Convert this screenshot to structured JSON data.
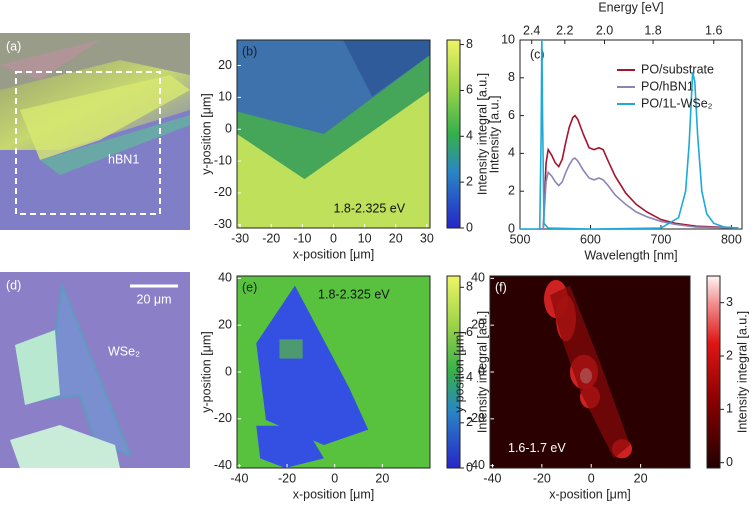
{
  "photos": [
    {
      "panel_label": "(a)",
      "labels": [
        "hBN1"
      ]
    },
    {
      "panel_label": "(d)",
      "labels": [
        "20 μm",
        "WSe₂"
      ]
    }
  ],
  "chart_data": [
    {
      "type": "heatmap",
      "panel_label": "(b)",
      "annotation": "1.8-2.325 eV",
      "colormap": "viridis",
      "x_label": "x-position [μm]",
      "y_label": "y-position [μm]",
      "colorbar_label": "Intensity integral [a.u.]",
      "xlim": [
        -31,
        31
      ],
      "xticks": [
        -30,
        -20,
        -10,
        0,
        10,
        20,
        30
      ],
      "ylim": [
        -31,
        28
      ],
      "yticks": [
        -30,
        -20,
        -10,
        0,
        10,
        20
      ],
      "clim": [
        0,
        8.2
      ],
      "cticks": [
        0,
        2,
        4,
        6,
        8
      ]
    },
    {
      "type": "line",
      "panel_label": "(c)",
      "x_label": "Wavelength [nm]",
      "y_label": "Intensity [a.u.]",
      "x2_label": "Energy [eV]",
      "legend": "upper right",
      "xlim": [
        500,
        815
      ],
      "xticks": [
        500,
        600,
        700,
        800
      ],
      "ylim": [
        0,
        10
      ],
      "yticks": [
        0,
        2,
        4,
        6,
        8,
        10
      ],
      "x2ticks": [
        2.4,
        2.2,
        {
          "value": 2,
          "label": "2.0"
        },
        1.8,
        1.6
      ],
      "series": [
        {
          "name": "PO/substrate",
          "color": "#a3152f",
          "x": [
            525,
            533,
            537,
            540,
            545,
            550,
            555,
            560,
            565,
            570,
            575,
            578,
            582,
            590,
            598,
            605,
            612,
            618,
            625,
            635,
            650,
            665,
            680,
            700,
            720,
            750,
            780,
            810
          ],
          "values": [
            0,
            0,
            3.5,
            4.2,
            3.9,
            3.5,
            3.3,
            3.7,
            4.6,
            5.4,
            5.9,
            6.0,
            5.8,
            5.0,
            4.3,
            4.2,
            4.3,
            4.2,
            3.6,
            2.8,
            1.9,
            1.3,
            0.9,
            0.5,
            0.3,
            0.15,
            0.1,
            0.05
          ]
        },
        {
          "name": "PO/hBN1",
          "color": "#8c84b4",
          "x": [
            525,
            533,
            537,
            540,
            545,
            550,
            555,
            560,
            565,
            570,
            575,
            578,
            582,
            590,
            598,
            605,
            612,
            618,
            625,
            635,
            650,
            665,
            680,
            700,
            720,
            750,
            780,
            810
          ],
          "values": [
            0,
            0,
            2.5,
            3.0,
            2.8,
            2.5,
            2.3,
            2.5,
            3.0,
            3.4,
            3.7,
            3.75,
            3.6,
            3.1,
            2.7,
            2.6,
            2.7,
            2.6,
            2.3,
            1.8,
            1.3,
            0.9,
            0.65,
            0.4,
            0.25,
            0.1,
            0.08,
            0.05
          ]
        },
        {
          "name": "PO/1L-WSe₂",
          "color": "#1ea9d8",
          "x": [
            500,
            528,
            530,
            531,
            532,
            534,
            540,
            600,
            700,
            725,
            735,
            740,
            745,
            748,
            752,
            758,
            765,
            775,
            790,
            810
          ],
          "values": [
            0,
            0,
            5,
            10.2,
            6,
            0.3,
            0.05,
            0,
            0.05,
            0.6,
            2,
            4.5,
            8.3,
            7.8,
            5,
            2,
            0.8,
            0.3,
            0.1,
            0.05
          ]
        }
      ]
    },
    {
      "type": "heatmap",
      "panel_label": "(e)",
      "annotation": "1.8-2.325 eV",
      "colormap": "viridis",
      "x_label": "x-position [μm]",
      "y_label": "y-position [μm]",
      "colorbar_label": "Intensity integral [a.u.]",
      "xlim": [
        -41,
        40
      ],
      "xticks": [
        -40,
        -20,
        0,
        20
      ],
      "ylim": [
        -41,
        41
      ],
      "yticks": [
        -40,
        -20,
        0,
        20,
        40
      ],
      "clim": [
        0,
        8.5
      ],
      "cticks": [
        0,
        2,
        4,
        6,
        8
      ]
    },
    {
      "type": "heatmap",
      "panel_label": "(f)",
      "annotation": "1.6-1.7 eV",
      "colormap": "hot",
      "x_label": "x-position [μm]",
      "y_label": "y-position [μm]",
      "colorbar_label": "Intensity integral [a.u.]",
      "xlim": [
        -41,
        40
      ],
      "xticks": [
        -40,
        -20,
        0,
        20
      ],
      "ylim": [
        -41,
        41
      ],
      "yticks": [
        -40,
        -20,
        0,
        20,
        40
      ],
      "clim": [
        -0.1,
        3.5
      ],
      "cticks": [
        0,
        1,
        2,
        3
      ]
    }
  ]
}
